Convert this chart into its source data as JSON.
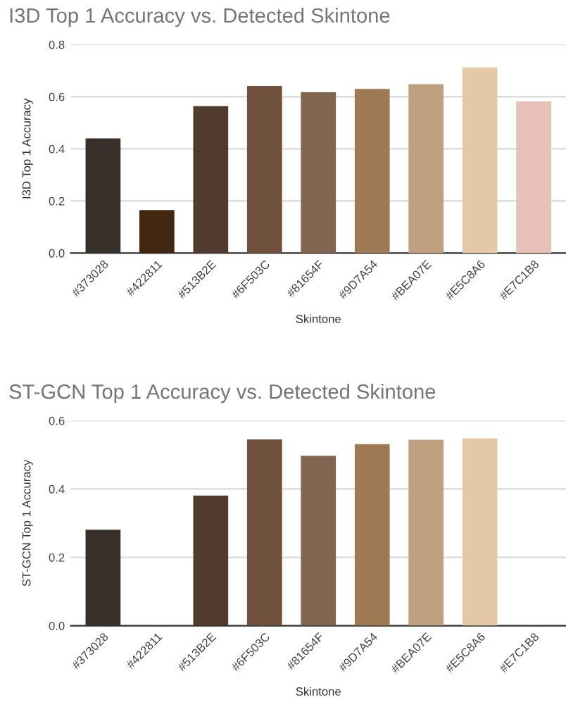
{
  "chart_data": [
    {
      "type": "bar",
      "title": "I3D Top 1 Accuracy vs. Detected Skintone",
      "xlabel": "Skintone",
      "ylabel": "I3D Top 1 Accuracy",
      "categories": [
        "#373028",
        "#422811",
        "#513B2E",
        "#6F503C",
        "#81654F",
        "#9D7A54",
        "#BEA07E",
        "#E5C8A6",
        "#E7C1B8"
      ],
      "values": [
        0.44,
        0.165,
        0.564,
        0.641,
        0.617,
        0.63,
        0.648,
        0.712,
        0.582
      ],
      "colors": [
        "#373028",
        "#422811",
        "#513b2e",
        "#6f503c",
        "#81654f",
        "#9d7a54",
        "#bea07e",
        "#e5c8a6",
        "#e7c1b8"
      ],
      "ylim": [
        0,
        0.8
      ],
      "yticks": [
        {
          "value": 0,
          "label": "0.0"
        },
        0.2,
        0.4,
        0.6,
        0.8
      ],
      "grid": "y",
      "legend": false
    },
    {
      "type": "bar",
      "title": "ST-GCN Top 1 Accuracy vs. Detected Skintone",
      "xlabel": "Skintone",
      "ylabel": "ST-GCN Top 1 Accuracy",
      "categories": [
        "#373028",
        "#422811",
        "#513B2E",
        "#6F503C",
        "#81654F",
        "#9D7A54",
        "#BEA07E",
        "#E5C8A6",
        "#E7C1B8"
      ],
      "values": [
        0.281,
        0,
        0.381,
        0.545,
        0.497,
        0.531,
        0.544,
        0.548,
        0
      ],
      "colors": [
        "#373028",
        "#422811",
        "#513b2e",
        "#6f503c",
        "#81654f",
        "#9d7a54",
        "#bea07e",
        "#e5c8a6",
        "#e7c1b8"
      ],
      "ylim": [
        0,
        0.6
      ],
      "yticks": [
        {
          "value": 0,
          "label": "0.0"
        },
        0.2,
        0.4,
        0.6
      ],
      "grid": "y",
      "legend": false
    }
  ]
}
